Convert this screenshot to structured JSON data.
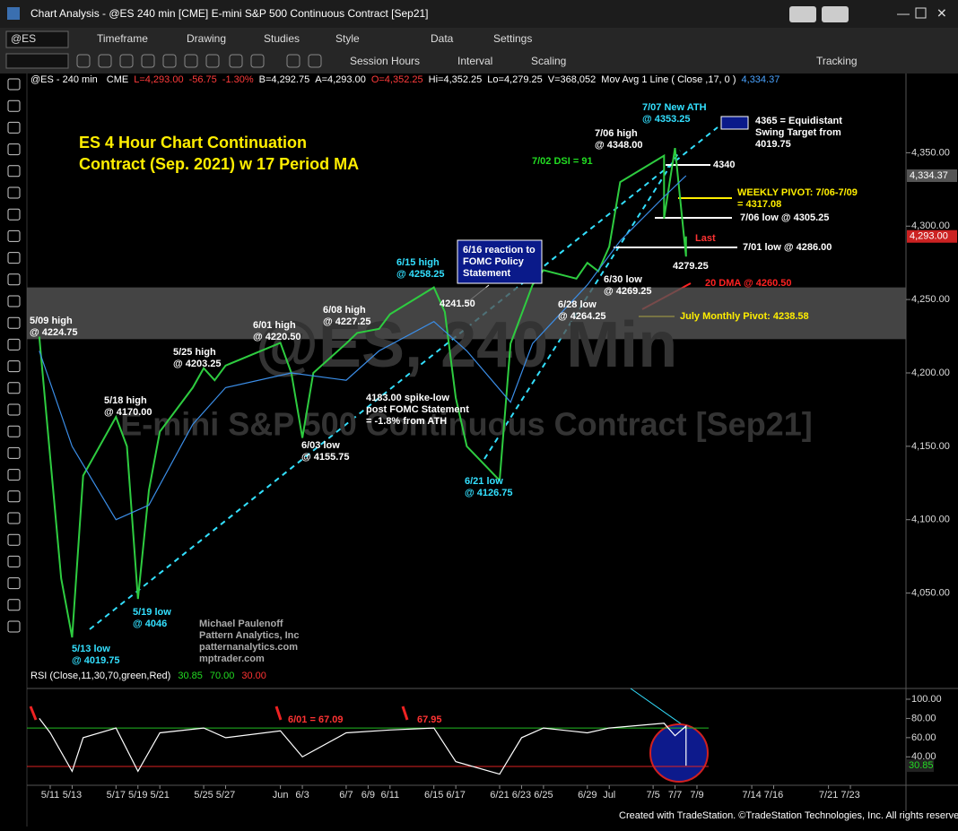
{
  "window": {
    "title": "Chart Analysis - @ES 240 min [CME] E-mini S&P 500 Continuous Contract [Sep21]"
  },
  "toolbar": {
    "symbol": "@ES",
    "menu": [
      "Timeframe",
      "Drawing",
      "Studies",
      "Style",
      "Data",
      "Settings"
    ],
    "menu2": [
      "Session Hours",
      "Interval",
      "Scaling",
      "Tracking"
    ]
  },
  "status_line": [
    {
      "text": "@ES - 240 min",
      "color": "#ffffff"
    },
    {
      "text": "CME",
      "color": "#ffffff"
    },
    {
      "text": "L=4,293.00",
      "color": "#ff3b3b"
    },
    {
      "text": "-56.75",
      "color": "#ff3b3b"
    },
    {
      "text": "-1.30%",
      "color": "#ff3b3b"
    },
    {
      "text": "B=4,292.75",
      "color": "#ffffff"
    },
    {
      "text": "A=4,293.00",
      "color": "#ffffff"
    },
    {
      "text": "O=4,352.25",
      "color": "#ff3b3b"
    },
    {
      "text": "Hi=4,352.25",
      "color": "#ffffff"
    },
    {
      "text": "Lo=4,279.25",
      "color": "#ffffff"
    },
    {
      "text": "V=368,052",
      "color": "#ffffff"
    },
    {
      "text": "Mov Avg 1 Line ( Close ,17,  0 )",
      "color": "#ffffff"
    },
    {
      "text": "4,334.37",
      "color": "#4aa3ff"
    }
  ],
  "chart_data": {
    "type": "line",
    "title": [
      "ES 4 Hour Chart Continuation",
      "Contract (Sep. 2021) w 17 Period MA"
    ],
    "watermark": [
      "@ES, 240 Min",
      "E-mini S&P 500 Continuous Contract [Sep21]"
    ],
    "ylim": [
      3996,
      4393
    ],
    "yticks": [
      {
        "value": 4350,
        "label": "4,350.00"
      },
      {
        "value": 4300,
        "label": "4,300.00"
      },
      {
        "value": 4250,
        "label": "4,250.00"
      },
      {
        "value": 4200,
        "label": "4,200.00"
      },
      {
        "value": 4150,
        "label": "4,150.00"
      },
      {
        "value": 4100,
        "label": "4,100.00"
      },
      {
        "value": 4050,
        "label": "4,050.00"
      }
    ],
    "xticks": [
      "5/11",
      "5/13",
      "5/17",
      "5/19",
      "5/21",
      "5/25",
      "5/27",
      {
        "value": "6/1",
        "label": "Jun"
      },
      "6/3",
      "6/7",
      "6/9",
      "6/11",
      "6/15",
      "6/17",
      "6/21",
      "6/23",
      "6/25",
      "6/29",
      {
        "value": "7/1",
        "label": "Jul"
      },
      "7/5",
      "7/7",
      "7/9",
      "7/14",
      "7/16",
      "7/21",
      "7/23"
    ],
    "zone": [
      4223,
      4258.25
    ],
    "series": [
      {
        "name": "Close",
        "color": "#2ecc40",
        "x": [
          "5/10",
          "5/12",
          "5/13",
          "5/14",
          "5/17",
          "5/18",
          "5/19",
          "5/20",
          "5/21",
          "5/24",
          "5/25",
          "5/26",
          "5/27",
          "6/1",
          "6/2",
          "6/3",
          "6/4",
          "6/7",
          "6/8",
          "6/10",
          "6/11",
          "6/15",
          "6/16",
          "6/17",
          "6/18",
          "6/21",
          "6/22",
          "6/24",
          "6/25",
          "6/28",
          "6/29",
          "6/30",
          "7/1",
          "7/2",
          "7/6",
          "7/6",
          "7/7",
          "7/8",
          "7/8"
        ],
        "values": [
          4224.75,
          4060,
          4019.75,
          4130,
          4170,
          4150,
          4046,
          4120,
          4160,
          4190,
          4203.25,
          4195,
          4205,
          4220.5,
          4200,
          4155.75,
          4200,
          4220,
          4227.25,
          4230,
          4240,
          4258.25,
          4241.5,
          4183,
          4150,
          4126.75,
          4220,
          4260,
          4270,
          4264.25,
          4275,
          4269.25,
          4286,
          4330,
          4348,
          4305.25,
          4353.25,
          4279.25,
          4293
        ]
      },
      {
        "name": "Mov Avg 1 Line",
        "color": "#3b8ee8",
        "x": [
          "5/10",
          "5/13",
          "5/17",
          "5/20",
          "5/24",
          "5/27",
          "6/2",
          "6/7",
          "6/10",
          "6/15",
          "6/18",
          "6/22",
          "6/24",
          "6/29",
          "7/2",
          "7/6",
          "7/8"
        ],
        "values": [
          4215,
          4150,
          4100,
          4110,
          4165,
          4190,
          4200,
          4195,
          4215,
          4235,
          4215,
          4180,
          4220,
          4260,
          4290,
          4320,
          4334.37
        ]
      }
    ],
    "last_labels": [
      {
        "value": 4334.37,
        "label": "4,334.37",
        "color": "#555555"
      },
      {
        "value": 4293,
        "label": "4,293.00",
        "color": "#cc2222"
      }
    ],
    "annotations": [
      {
        "lines": [
          "5/09 high",
          "@ 4224.75"
        ],
        "color": "#ffffff"
      },
      {
        "lines": [
          "5/13 low",
          "@ 4019.75"
        ],
        "color": "#33e0ff"
      },
      {
        "lines": [
          "5/18 high",
          "@ 4170.00"
        ],
        "color": "#ffffff"
      },
      {
        "lines": [
          "5/19 low",
          "@ 4046"
        ],
        "color": "#33e0ff"
      },
      {
        "lines": [
          "5/25 high",
          "@ 4203.25"
        ],
        "color": "#ffffff"
      },
      {
        "lines": [
          "6/01 high",
          "@ 4220.50"
        ],
        "color": "#ffffff"
      },
      {
        "lines": [
          "6/08 high",
          "@ 4227.25"
        ],
        "color": "#ffffff"
      },
      {
        "lines": [
          "6/03 low",
          "@ 4155.75"
        ],
        "color": "#ffffff"
      },
      {
        "lines": [
          "6/15 high",
          "@ 4258.25"
        ],
        "color": "#33e0ff"
      },
      {
        "lines": [
          "4241.50"
        ],
        "color": "#ffffff"
      },
      {
        "lines": [
          "6/16 reaction to",
          "FOMC Policy",
          "Statement"
        ],
        "color": "#ffffff"
      },
      {
        "lines": [
          "4183.00 spike-low",
          "post FOMC Statement",
          "= -1.8% from ATH"
        ],
        "color": "#ffffff"
      },
      {
        "lines": [
          "6/21 low",
          "@ 4126.75"
        ],
        "color": "#33e0ff"
      },
      {
        "lines": [
          "6/28 low",
          "@ 4264.25"
        ],
        "color": "#ffffff"
      },
      {
        "lines": [
          "6/30 low",
          "@ 4269.25"
        ],
        "color": "#ffffff"
      },
      {
        "lines": [
          "7/02 DSI = 91"
        ],
        "color": "#22dd22"
      },
      {
        "lines": [
          "7/06 high",
          "@ 4348.00"
        ],
        "color": "#ffffff"
      },
      {
        "lines": [
          "7/07 New ATH",
          "@ 4353.25"
        ],
        "color": "#33e0ff"
      },
      {
        "lines": [
          "4340"
        ],
        "color": "#ffffff"
      },
      {
        "lines": [
          "WEEKLY PIVOT: 7/06-7/09",
          "= 4317.08"
        ],
        "color": "#ffee00"
      },
      {
        "lines": [
          "7/06 low @ 4305.25"
        ],
        "color": "#ffffff"
      },
      {
        "lines": [
          "Last"
        ],
        "color": "#ff3333"
      },
      {
        "lines": [
          "7/01 low @ 4286.00"
        ],
        "color": "#ffffff"
      },
      {
        "lines": [
          "4279.25"
        ],
        "color": "#ffffff"
      },
      {
        "lines": [
          "20 DMA @ 4260.50"
        ],
        "color": "#ff2222"
      },
      {
        "lines": [
          "July Monthly Pivot: 4238.58"
        ],
        "color": "#ffee00"
      },
      {
        "lines": [
          "4365 = Equidistant",
          "Swing Target from",
          "4019.75"
        ],
        "color": "#ffffff"
      },
      {
        "lines": [
          "Michael Paulenoff",
          "Pattern Analytics, Inc",
          "patternanalytics.com",
          "mptrader.com"
        ],
        "color": "#aaaaaa"
      }
    ],
    "rsi": {
      "label": "RSI (Close,11,30,70,green,Red)",
      "readouts": [
        {
          "text": "30.85",
          "color": "#22dd22"
        },
        {
          "text": "70.00",
          "color": "#22dd22"
        },
        {
          "text": "30.00",
          "color": "#ff3333"
        }
      ],
      "ylim": [
        16,
        100
      ],
      "yticks": [
        {
          "value": 100,
          "label": "100.00"
        },
        {
          "value": 80,
          "label": "80.00"
        },
        {
          "value": 60,
          "label": "60.00"
        },
        {
          "value": 40,
          "label": "40.00"
        }
      ],
      "levels": [
        {
          "value": 70,
          "color": "#22bb22"
        },
        {
          "value": 30,
          "color": "#dd2222"
        }
      ],
      "last": {
        "value": 30.85,
        "label": "30.85"
      },
      "x": [
        "5/10",
        "5/11",
        "5/13",
        "5/14",
        "5/17",
        "5/19",
        "5/21",
        "5/25",
        "5/27",
        "6/1",
        "6/3",
        "6/7",
        "6/11",
        "6/15",
        "6/17",
        "6/21",
        "6/23",
        "6/25",
        "6/29",
        "7/1",
        "7/6",
        "7/7",
        "7/8",
        "7/8"
      ],
      "values": [
        80,
        65,
        25,
        60,
        70,
        25,
        65,
        70,
        60,
        67.09,
        40,
        65,
        67.95,
        70,
        35,
        22,
        60,
        70,
        65,
        70,
        75,
        62,
        72,
        30.85
      ],
      "notes": [
        {
          "lines": [
            "6/01 = 67.09"
          ],
          "color": "#ff3333"
        },
        {
          "lines": [
            "67.95"
          ],
          "color": "#ff3333"
        }
      ]
    }
  },
  "footer": "Created with TradeStation. ©TradeStation Technologies, Inc. All rights reserved."
}
